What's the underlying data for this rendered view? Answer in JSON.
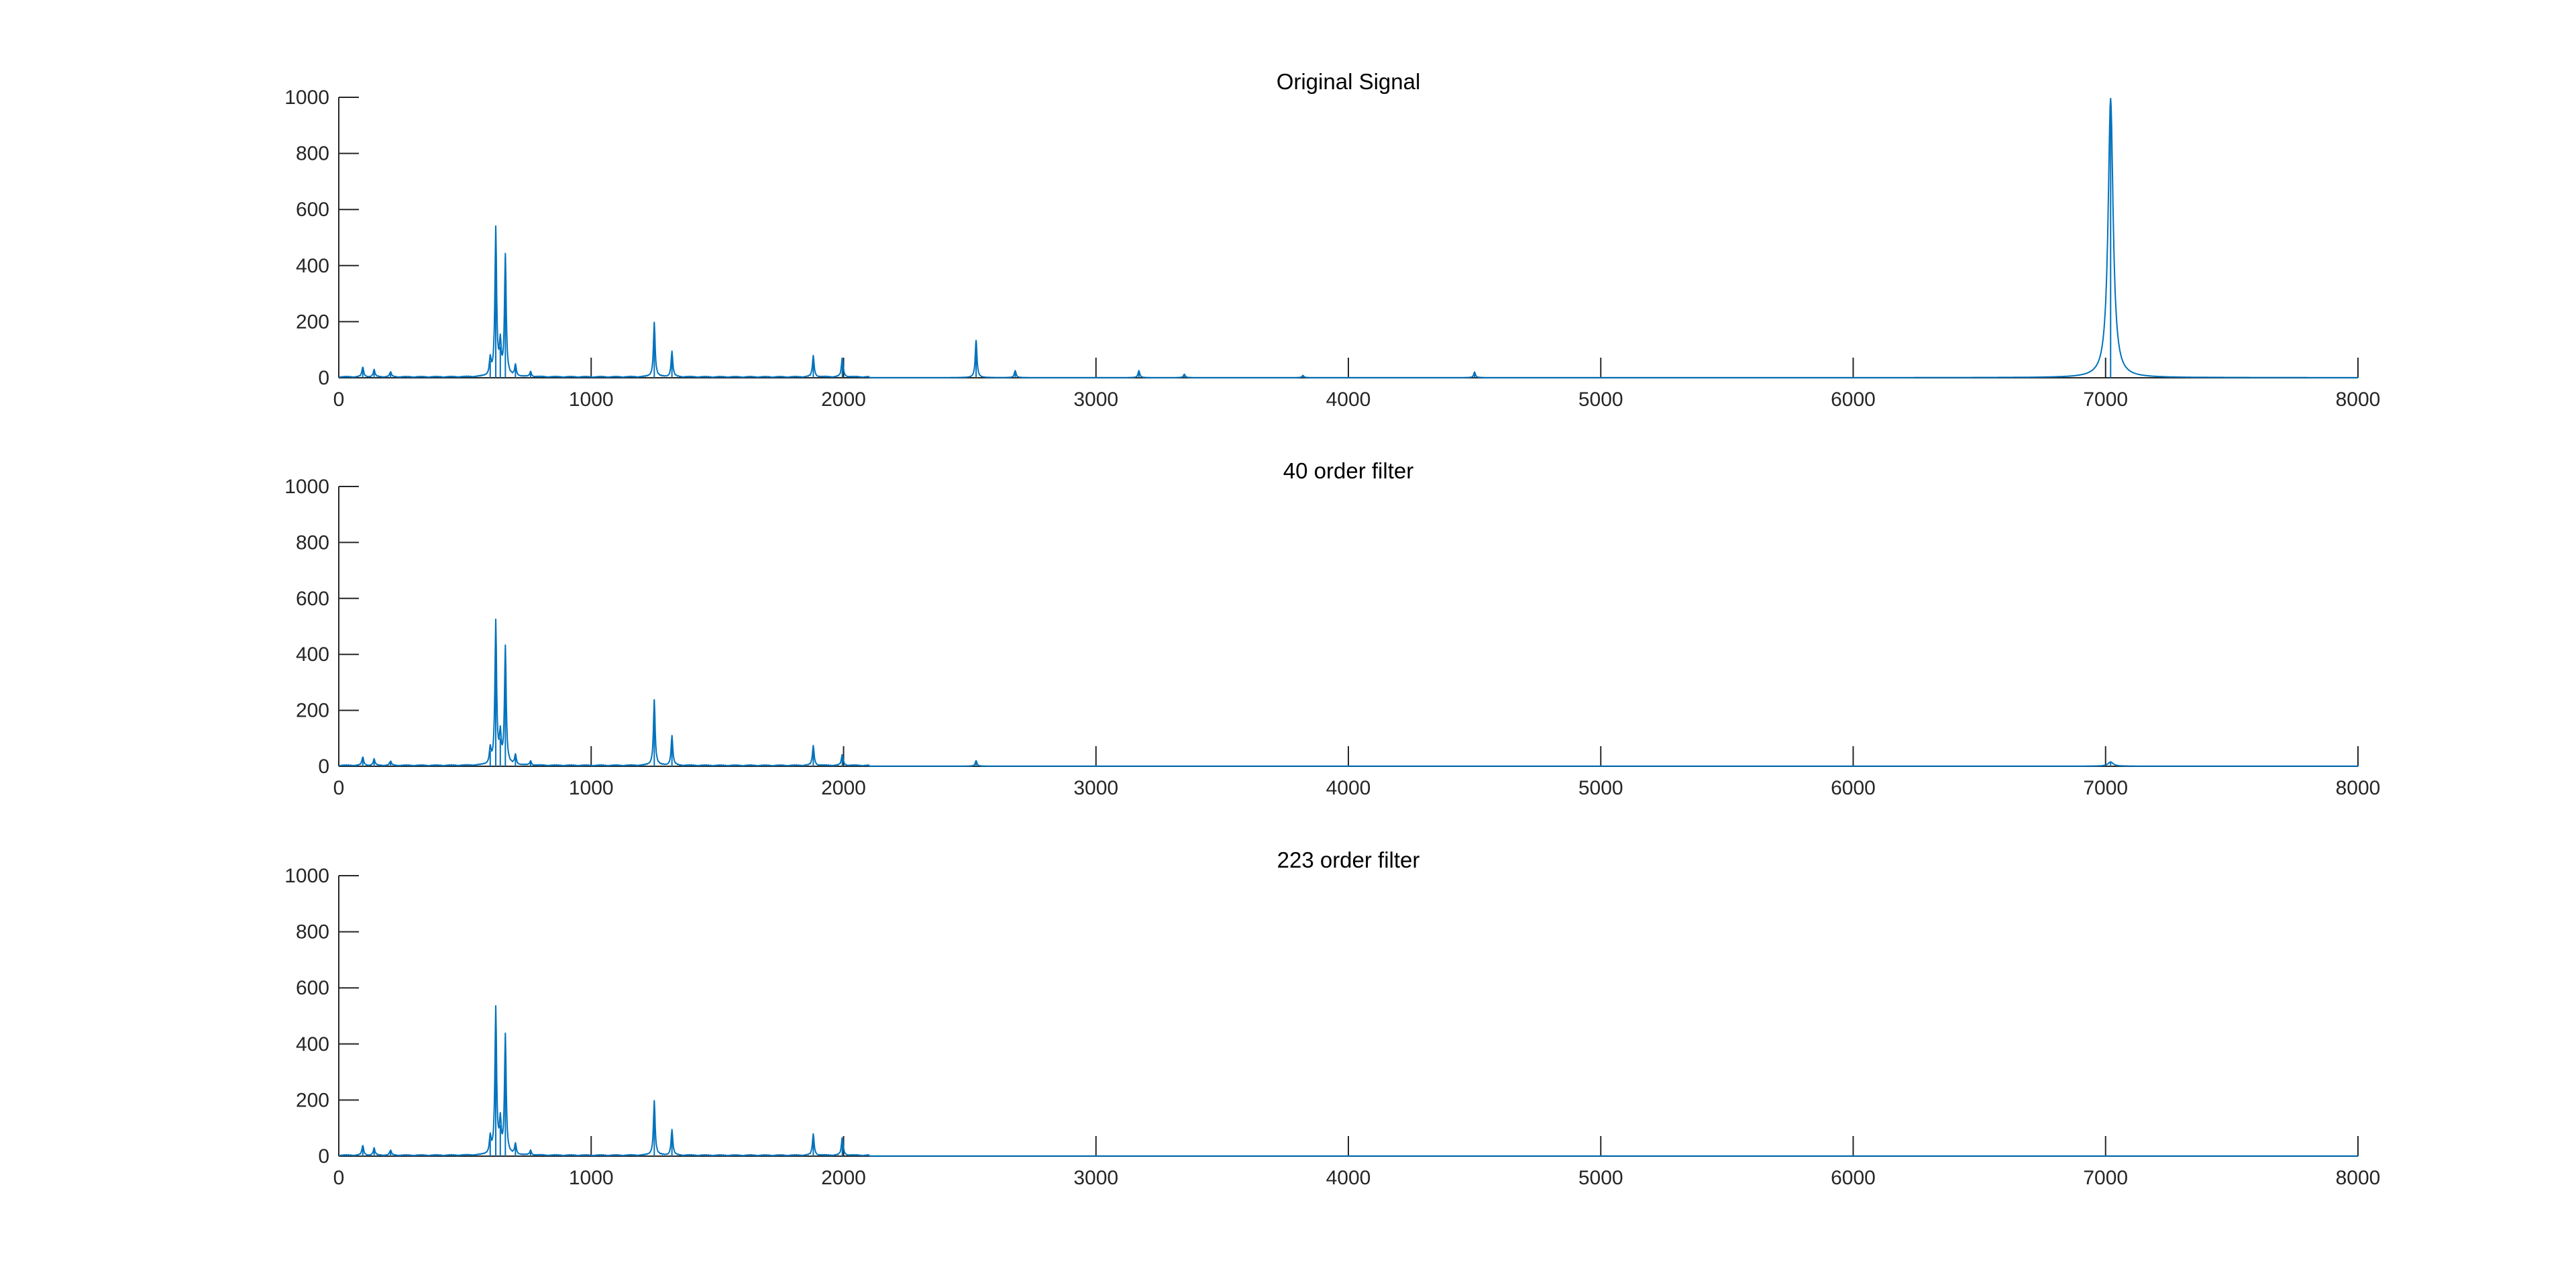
{
  "chart_data": [
    {
      "type": "line",
      "title": "Original Signal",
      "xlim": [
        0,
        8000
      ],
      "ylim": [
        0,
        1000
      ],
      "xticks": [
        0,
        1000,
        2000,
        3000,
        4000,
        5000,
        6000,
        7000,
        8000
      ],
      "yticks": [
        0,
        200,
        400,
        600,
        800,
        1000
      ],
      "grid": false,
      "series": [
        {
          "color": "#0072BD",
          "peaks": [
            [
              95,
              35
            ],
            [
              140,
              25
            ],
            [
              205,
              18
            ],
            [
              600,
              60
            ],
            [
              622,
              525
            ],
            [
              640,
              110
            ],
            [
              660,
              430
            ],
            [
              700,
              40
            ],
            [
              760,
              18
            ],
            [
              1250,
              195
            ],
            [
              1320,
              90
            ],
            [
              1880,
              75
            ],
            [
              1995,
              70
            ],
            [
              2525,
              135
            ],
            [
              2680,
              25
            ],
            [
              3170,
              25
            ],
            [
              3350,
              12
            ],
            [
              3820,
              8
            ],
            [
              4500,
              20
            ],
            [
              7020,
              995
            ]
          ]
        }
      ]
    },
    {
      "type": "line",
      "title": "40 order filter",
      "xlim": [
        0,
        8000
      ],
      "ylim": [
        0,
        1000
      ],
      "xticks": [
        0,
        1000,
        2000,
        3000,
        4000,
        5000,
        6000,
        7000,
        8000
      ],
      "yticks": [
        0,
        200,
        400,
        600,
        800,
        1000
      ],
      "grid": false,
      "series": [
        {
          "color": "#0072BD",
          "peaks": [
            [
              95,
              30
            ],
            [
              140,
              22
            ],
            [
              205,
              15
            ],
            [
              600,
              55
            ],
            [
              622,
              510
            ],
            [
              640,
              100
            ],
            [
              660,
              420
            ],
            [
              700,
              35
            ],
            [
              760,
              15
            ],
            [
              1250,
              235
            ],
            [
              1320,
              105
            ],
            [
              1880,
              70
            ],
            [
              1995,
              40
            ],
            [
              2525,
              20
            ],
            [
              7020,
              15
            ]
          ]
        }
      ]
    },
    {
      "type": "line",
      "title": "223 order filter",
      "xlim": [
        0,
        8000
      ],
      "ylim": [
        0,
        1000
      ],
      "xticks": [
        0,
        1000,
        2000,
        3000,
        4000,
        5000,
        6000,
        7000,
        8000
      ],
      "yticks": [
        0,
        200,
        400,
        600,
        800,
        1000
      ],
      "grid": false,
      "series": [
        {
          "color": "#0072BD",
          "peaks": [
            [
              95,
              35
            ],
            [
              140,
              25
            ],
            [
              205,
              18
            ],
            [
              600,
              60
            ],
            [
              622,
              520
            ],
            [
              640,
              110
            ],
            [
              660,
              425
            ],
            [
              700,
              38
            ],
            [
              760,
              17
            ],
            [
              1250,
              195
            ],
            [
              1320,
              90
            ],
            [
              1880,
              75
            ],
            [
              1995,
              65
            ]
          ]
        }
      ]
    }
  ]
}
